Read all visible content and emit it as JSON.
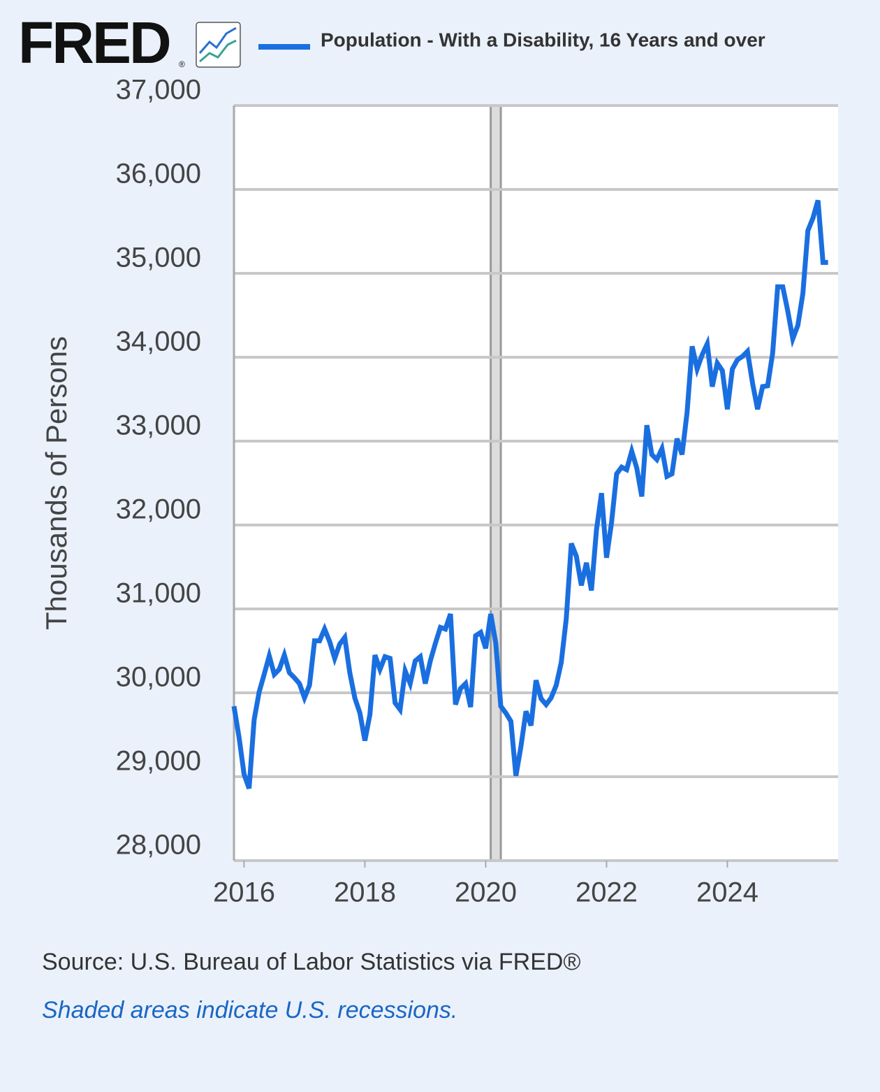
{
  "chart_data": {
    "type": "line",
    "logo": "FRED",
    "logo_mark": "®",
    "y_label": "Thousands of Persons",
    "source": "Source: U.S. Bureau of Labor Statistics via FRED®",
    "note": "Shaded areas indicate U.S. recessions.",
    "xlim": [
      2015.833,
      2025.833
    ],
    "xticks": [
      2016,
      2018,
      2020,
      2022,
      2024
    ],
    "ylim": [
      28000,
      37000
    ],
    "yticks": [
      {
        "value": 28000,
        "label": "28,000"
      },
      {
        "value": 29000,
        "label": "29,000"
      },
      {
        "value": 30000,
        "label": "30,000"
      },
      {
        "value": 31000,
        "label": "31,000"
      },
      {
        "value": 32000,
        "label": "32,000"
      },
      {
        "value": 33000,
        "label": "33,000"
      },
      {
        "value": 34000,
        "label": "34,000"
      },
      {
        "value": 35000,
        "label": "35,000"
      },
      {
        "value": 36000,
        "label": "36,000"
      },
      {
        "value": 37000,
        "label": "37,000"
      }
    ],
    "grid": true,
    "recessions": [
      [
        2020.083,
        2020.25
      ]
    ],
    "x": [
      2015.833,
      2015.917,
      2016.0,
      2016.083,
      2016.167,
      2016.25,
      2016.333,
      2016.417,
      2016.5,
      2016.583,
      2016.667,
      2016.75,
      2016.833,
      2016.917,
      2017.0,
      2017.083,
      2017.167,
      2017.25,
      2017.333,
      2017.417,
      2017.5,
      2017.583,
      2017.667,
      2017.75,
      2017.833,
      2017.917,
      2018.0,
      2018.083,
      2018.167,
      2018.25,
      2018.333,
      2018.417,
      2018.5,
      2018.583,
      2018.667,
      2018.75,
      2018.833,
      2018.917,
      2019.0,
      2019.083,
      2019.167,
      2019.25,
      2019.333,
      2019.417,
      2019.5,
      2019.583,
      2019.667,
      2019.75,
      2019.833,
      2019.917,
      2020.0,
      2020.083,
      2020.167,
      2020.25,
      2020.333,
      2020.417,
      2020.5,
      2020.583,
      2020.667,
      2020.75,
      2020.833,
      2020.917,
      2021.0,
      2021.083,
      2021.167,
      2021.25,
      2021.333,
      2021.417,
      2021.5,
      2021.583,
      2021.667,
      2021.75,
      2021.833,
      2021.917,
      2022.0,
      2022.083,
      2022.167,
      2022.25,
      2022.333,
      2022.417,
      2022.5,
      2022.583,
      2022.667,
      2022.75,
      2022.833,
      2022.917,
      2023.0,
      2023.083,
      2023.167,
      2023.25,
      2023.333,
      2023.417,
      2023.5,
      2023.583,
      2023.667,
      2023.75,
      2023.833,
      2023.917,
      2024.0,
      2024.083,
      2024.167,
      2024.25,
      2024.333,
      2024.417,
      2024.5,
      2024.583,
      2024.667,
      2024.75,
      2024.833,
      2024.917,
      2025.0,
      2025.083,
      2025.167,
      2025.25,
      2025.333,
      2025.417,
      2025.5,
      2025.583,
      2025.667
    ],
    "series": [
      {
        "name": "Population - With a Disability, 16 Years and over",
        "color": "#1a6fe0",
        "values": [
          29840,
          29470,
          29030,
          28860,
          29680,
          30010,
          30220,
          30440,
          30220,
          30280,
          30450,
          30240,
          30180,
          30110,
          29940,
          30090,
          30620,
          30620,
          30760,
          30610,
          30410,
          30580,
          30660,
          30240,
          29940,
          29760,
          29430,
          29740,
          30450,
          30280,
          30430,
          30410,
          29880,
          29800,
          30260,
          30110,
          30380,
          30430,
          30110,
          30380,
          30590,
          30780,
          30760,
          30940,
          29860,
          30050,
          30110,
          29830,
          30680,
          30720,
          30530,
          30940,
          30590,
          29840,
          29760,
          29660,
          29010,
          29360,
          29780,
          29610,
          30150,
          29930,
          29860,
          29940,
          30090,
          30360,
          30880,
          31780,
          31630,
          31280,
          31550,
          31220,
          31940,
          32380,
          31610,
          32030,
          32610,
          32690,
          32660,
          32880,
          32680,
          32340,
          33190,
          32840,
          32780,
          32910,
          32580,
          32610,
          33030,
          32840,
          33340,
          34130,
          33860,
          34030,
          34160,
          33650,
          33930,
          33840,
          33380,
          33860,
          33970,
          34010,
          34070,
          33690,
          33380,
          33650,
          33660,
          34050,
          34840,
          34840,
          34550,
          34220,
          34380,
          34760,
          35510,
          35660,
          35870,
          35130,
          35130
        ]
      }
    ]
  }
}
